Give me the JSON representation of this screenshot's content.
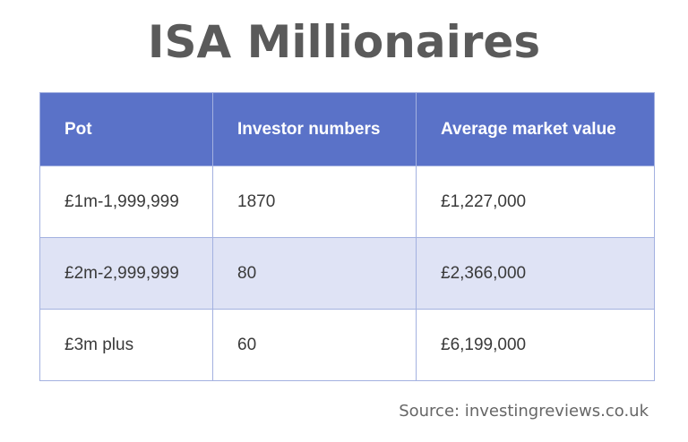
{
  "title": "ISA Millionaires",
  "source": "Source: investingreviews.co.uk",
  "colors": {
    "header_bg": "#5a72c8",
    "alt_row_bg": "#dfe3f5",
    "title_color": "#5a5a5a"
  },
  "chart_data": {
    "type": "table",
    "title": "ISA Millionaires",
    "columns": [
      "Pot",
      "Investor numbers",
      "Average market value"
    ],
    "rows": [
      [
        "£1m-1,999,999",
        "1870",
        "£1,227,000"
      ],
      [
        "£2m-2,999,999",
        "80",
        "£2,366,000"
      ],
      [
        "£3m plus",
        "60",
        "£6,199,000"
      ]
    ]
  }
}
